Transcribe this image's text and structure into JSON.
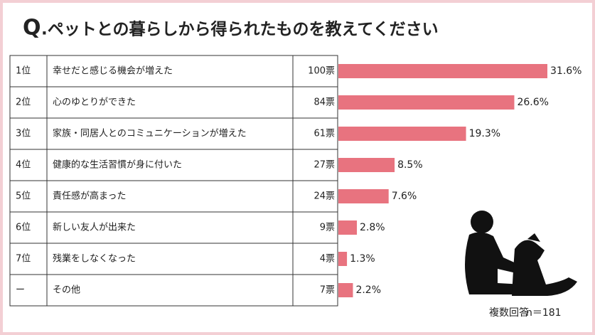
{
  "chart_data": {
    "type": "bar",
    "title_q": "Q",
    "title": ".ペットとの暮らしから得られたものを教えてください",
    "ranks": [
      "1位",
      "2位",
      "3位",
      "4位",
      "5位",
      "6位",
      "7位",
      "ー"
    ],
    "categories": [
      "幸せだと感じる機会が増えた",
      "心のゆとりができた",
      "家族・同居人とのコミュニケーションが増えた",
      "健康的な生活習慣が身に付いた",
      "責任感が高まった",
      "新しい友人が出来た",
      "残業をしなくなった",
      "その他"
    ],
    "votes": [
      100,
      84,
      61,
      27,
      24,
      9,
      4,
      7
    ],
    "votes_labels": [
      "100票",
      "84票",
      "61票",
      "27票",
      "24票",
      "9票",
      "4票",
      "7票"
    ],
    "values": [
      31.6,
      26.6,
      19.3,
      8.5,
      7.6,
      2.8,
      1.3,
      2.2
    ],
    "value_labels": [
      "31.6%",
      "26.6%",
      "19.3%",
      "8.5%",
      "7.6%",
      "2.8%",
      "1.3%",
      "2.2%"
    ],
    "color": "#e8737f",
    "note": "複数回答",
    "sample": "n＝181"
  }
}
